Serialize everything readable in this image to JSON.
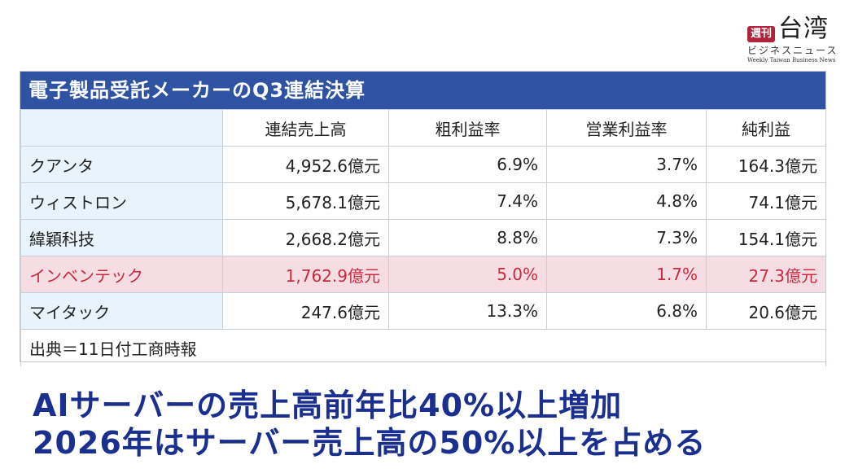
{
  "logo": {
    "badge": "週刊",
    "title": "台湾",
    "subtitle": "ビジネスニュース",
    "english": "Weekly Taiwan Business News"
  },
  "table": {
    "title": "電子製品受託メーカーのQ3連結決算",
    "headers": [
      "",
      "連結売上高",
      "粗利益率",
      "営業利益率",
      "純利益"
    ],
    "rows": [
      [
        "クアンタ",
        "4,952.6億元",
        "6.9%",
        "3.7%",
        "164.3億元"
      ],
      [
        "ウィストロン",
        "5,678.1億元",
        "7.4%",
        "4.8%",
        "74.1億元"
      ],
      [
        "緯穎科技",
        "2,668.2億元",
        "8.8%",
        "7.3%",
        "154.1億元"
      ],
      [
        "インベンテック",
        "1,762.9億元",
        "5.0%",
        "1.7%",
        "27.3億元"
      ],
      [
        "マイタック",
        "247.6億元",
        "13.3%",
        "6.8%",
        "20.6億元"
      ]
    ],
    "highlight_row": 3,
    "source": "出典＝11日付工商時報"
  },
  "headlines": [
    "AIサーバーの売上高前年比40%以上増加",
    "2026年はサーバー売上高の50%以上を占める"
  ],
  "colors": {
    "title_bar": "#2f52a3",
    "highlight_text": "#c82a3d",
    "highlight_bg": "#f6dde3",
    "headline": "#1b2f8f",
    "logo_badge": "#b0243b"
  }
}
